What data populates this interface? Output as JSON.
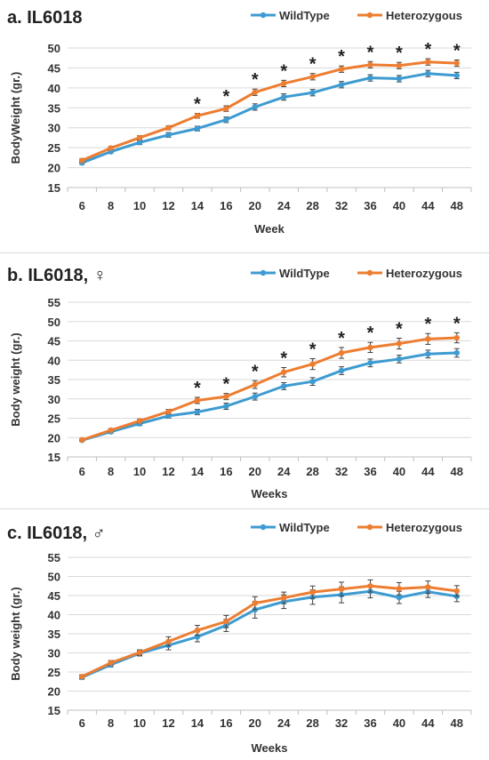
{
  "colors": {
    "wildtype": "#3d9bd1",
    "heterozygous": "#ed7d31",
    "grid": "#d9d9d9",
    "axis": "#bfbfbf",
    "errorbar": "#404040"
  },
  "legend": {
    "wildtype": "WildType",
    "heterozygous": "Heterozygous"
  },
  "chart_data": [
    {
      "type": "line",
      "title": "a. IL6018",
      "xlabel": "Week",
      "ylabel": "BodyWeight (gr.)",
      "ylim": [
        15,
        50
      ],
      "yticks": [
        15,
        20,
        25,
        30,
        35,
        40,
        45,
        50
      ],
      "categories": [
        "6",
        "8",
        "10",
        "12",
        "14",
        "16",
        "20",
        "24",
        "28",
        "32",
        "36",
        "40",
        "44",
        "48"
      ],
      "series": [
        {
          "name": "WildType",
          "values": [
            21.2,
            24.0,
            26.3,
            28.2,
            29.8,
            32.0,
            35.2,
            37.7,
            38.8,
            40.8,
            42.5,
            42.3,
            43.6,
            43.1
          ],
          "errors": [
            0.4,
            0.4,
            0.5,
            0.6,
            0.6,
            0.7,
            0.8,
            0.8,
            0.8,
            0.8,
            0.8,
            0.8,
            0.8,
            0.8
          ]
        },
        {
          "name": "Heterozygous",
          "values": [
            21.8,
            24.9,
            27.5,
            30.0,
            33.0,
            34.8,
            38.9,
            41.1,
            42.8,
            44.7,
            45.8,
            45.6,
            46.5,
            46.2
          ],
          "errors": [
            0.4,
            0.4,
            0.5,
            0.5,
            0.6,
            0.7,
            0.8,
            0.8,
            0.8,
            0.8,
            0.8,
            0.8,
            0.8,
            0.8
          ]
        }
      ],
      "annotations": {
        "text": "*",
        "categories": [
          "14",
          "16",
          "20",
          "24",
          "28",
          "32",
          "36",
          "40",
          "44",
          "48"
        ]
      },
      "legend_position": "top-right",
      "grid": true
    },
    {
      "type": "line",
      "title": "b. IL6018, ♀",
      "xlabel": "Weeks",
      "ylabel": "Body weight (gr.)",
      "ylim": [
        15,
        55
      ],
      "yticks": [
        15,
        20,
        25,
        30,
        35,
        40,
        45,
        50,
        55
      ],
      "categories": [
        "6",
        "8",
        "10",
        "12",
        "14",
        "16",
        "20",
        "24",
        "28",
        "32",
        "36",
        "40",
        "44",
        "48"
      ],
      "series": [
        {
          "name": "WildType",
          "values": [
            19.3,
            21.5,
            23.6,
            25.6,
            26.6,
            28.1,
            30.6,
            33.3,
            34.5,
            37.3,
            39.3,
            40.3,
            41.6,
            41.9
          ],
          "errors": [
            0.3,
            0.4,
            0.5,
            0.6,
            0.7,
            0.8,
            0.9,
            0.9,
            1.0,
            1.0,
            1.0,
            1.0,
            1.0,
            1.1
          ]
        },
        {
          "name": "Heterozygous",
          "values": [
            19.4,
            21.9,
            24.3,
            26.7,
            29.6,
            30.6,
            33.7,
            36.9,
            39.0,
            41.9,
            43.3,
            44.3,
            45.5,
            45.8
          ],
          "errors": [
            0.3,
            0.4,
            0.5,
            0.6,
            0.8,
            0.8,
            1.0,
            1.2,
            1.4,
            1.4,
            1.3,
            1.4,
            1.4,
            1.3
          ]
        }
      ],
      "annotations": {
        "text": "*",
        "categories": [
          "14",
          "16",
          "20",
          "24",
          "28",
          "32",
          "36",
          "40",
          "44",
          "48"
        ]
      },
      "legend_position": "top-right",
      "grid": true
    },
    {
      "type": "line",
      "title": "c. IL6018, ♂",
      "xlabel": "Weeks",
      "ylabel": "Body weight (gr.)",
      "ylim": [
        15,
        55
      ],
      "yticks": [
        15,
        20,
        25,
        30,
        35,
        40,
        45,
        50,
        55
      ],
      "categories": [
        "6",
        "8",
        "10",
        "12",
        "14",
        "16",
        "20",
        "24",
        "28",
        "32",
        "36",
        "40",
        "44",
        "48"
      ],
      "series": [
        {
          "name": "WildType",
          "values": [
            23.6,
            26.9,
            29.9,
            32.0,
            34.2,
            37.2,
            41.3,
            43.4,
            44.6,
            45.2,
            46.1,
            44.5,
            46.0,
            44.8
          ],
          "errors": [
            0.5,
            0.6,
            0.7,
            1.2,
            1.3,
            1.6,
            2.2,
            1.8,
            1.9,
            2.1,
            1.7,
            1.6,
            1.5,
            1.4
          ]
        },
        {
          "name": "Heterozygous",
          "values": [
            23.8,
            27.4,
            30.1,
            33.0,
            35.9,
            38.2,
            43.0,
            44.4,
            45.9,
            46.7,
            47.5,
            46.8,
            47.2,
            46.2
          ],
          "errors": [
            0.5,
            0.6,
            0.7,
            1.2,
            1.3,
            1.6,
            1.7,
            1.5,
            1.6,
            1.8,
            1.6,
            1.6,
            1.6,
            1.4
          ]
        }
      ],
      "legend_position": "top-right",
      "grid": true
    }
  ]
}
